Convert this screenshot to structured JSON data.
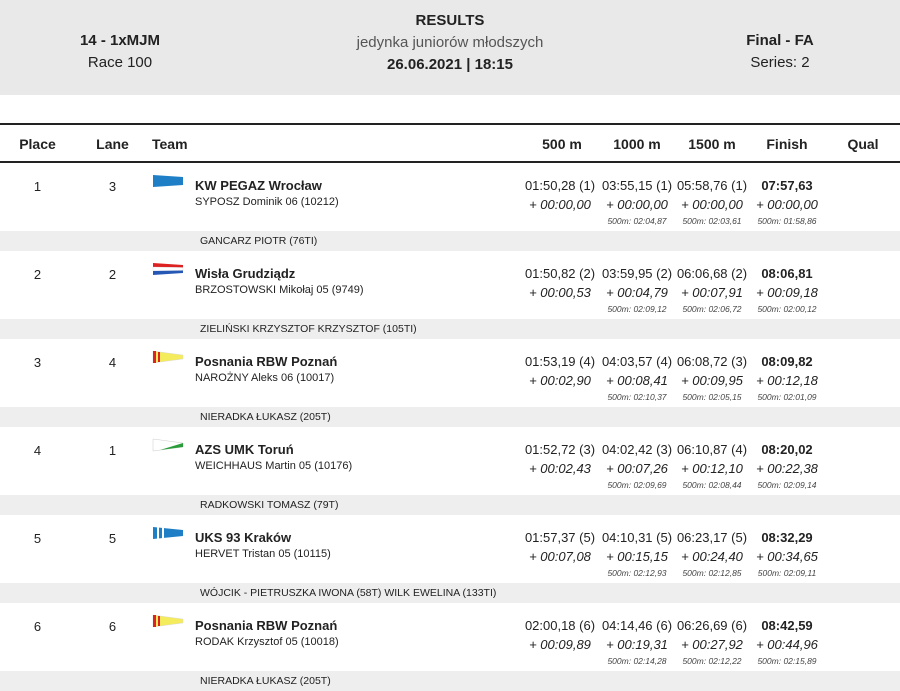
{
  "header": {
    "race_class": "14 - 1xMJM",
    "race_number": "Race 100",
    "title": "RESULTS",
    "event_name": "jedynka juniorów młodszych",
    "datetime": "26.06.2021 | 18:15",
    "phase": "Final - FA",
    "series": "Series: 2"
  },
  "columns": {
    "place": "Place",
    "lane": "Lane",
    "team": "Team",
    "s500": "500 m",
    "s1000": "1000 m",
    "s1500": "1500 m",
    "finish": "Finish",
    "qual": "Qual"
  },
  "results": [
    {
      "place": "1",
      "lane": "3",
      "team": "KW PEGAZ Wrocław",
      "rower": "SYPOSZ  Dominik 06 (10212)",
      "flag": "blue-pennant",
      "s500": "01:50,28 (1)",
      "s500_diff": "+ 00:00,00",
      "s1000": "03:55,15 (1)",
      "s1000_diff": "+ 00:00,00",
      "s1000_sub": "500m: 02:04,87",
      "s1500": "05:58,76 (1)",
      "s1500_diff": "+ 00:00,00",
      "s1500_sub": "500m: 02:03,61",
      "finish": "07:57,63",
      "finish_diff": "+ 00:00,00",
      "finish_sub": "500m: 01:58,86",
      "coach": "GANCARZ PIOTR (76TI)"
    },
    {
      "place": "2",
      "lane": "2",
      "team": "Wisła Grudziądz",
      "rower": "BRZOSTOWSKI  Mikołaj 05 (9749)",
      "flag": "red-white-blue-stripes",
      "s500": "01:50,82 (2)",
      "s500_diff": "+ 00:00,53",
      "s1000": "03:59,95 (2)",
      "s1000_diff": "+ 00:04,79",
      "s1000_sub": "500m: 02:09,12",
      "s1500": "06:06,68 (2)",
      "s1500_diff": "+ 00:07,91",
      "s1500_sub": "500m: 02:06,72",
      "finish": "08:06,81",
      "finish_diff": "+ 00:09,18",
      "finish_sub": "500m: 02:00,12",
      "coach": "ZIELIŃSKI KRZYSZTOF KRZYSZTOF (105TI)"
    },
    {
      "place": "3",
      "lane": "4",
      "team": "Posnania RBW Poznań",
      "rower": "NAROŻNY  Aleks 06 (10017)",
      "flag": "yellow-red-pennant",
      "s500": "01:53,19 (4)",
      "s500_diff": "+ 00:02,90",
      "s1000": "04:03,57 (4)",
      "s1000_diff": "+ 00:08,41",
      "s1000_sub": "500m: 02:10,37",
      "s1500": "06:08,72 (3)",
      "s1500_diff": "+ 00:09,95",
      "s1500_sub": "500m: 02:05,15",
      "finish": "08:09,82",
      "finish_diff": "+ 00:12,18",
      "finish_sub": "500m: 02:01,09",
      "coach": "NIERADKA ŁUKASZ (205T)"
    },
    {
      "place": "4",
      "lane": "1",
      "team": "AZS UMK Toruń",
      "rower": "WEICHHAUS  Martin 05 (10176)",
      "flag": "white-green-pennant",
      "s500": "01:52,72 (3)",
      "s500_diff": "+ 00:02,43",
      "s1000": "04:02,42 (3)",
      "s1000_diff": "+ 00:07,26",
      "s1000_sub": "500m: 02:09,69",
      "s1500": "06:10,87 (4)",
      "s1500_diff": "+ 00:12,10",
      "s1500_sub": "500m: 02:08,44",
      "finish": "08:20,02",
      "finish_diff": "+ 00:22,38",
      "finish_sub": "500m: 02:09,14",
      "coach": "RADKOWSKI TOMASZ (79T)"
    },
    {
      "place": "5",
      "lane": "5",
      "team": "UKS 93 Kraków",
      "rower": "HERVET  Tristan 05 (10115)",
      "flag": "blue-white-stripes-pennant",
      "s500": "01:57,37 (5)",
      "s500_diff": "+ 00:07,08",
      "s1000": "04:10,31 (5)",
      "s1000_diff": "+ 00:15,15",
      "s1000_sub": "500m: 02:12,93",
      "s1500": "06:23,17 (5)",
      "s1500_diff": "+ 00:24,40",
      "s1500_sub": "500m: 02:12,85",
      "finish": "08:32,29",
      "finish_diff": "+ 00:34,65",
      "finish_sub": "500m: 02:09,11",
      "coach": "WÓJCIK - PIETRUSZKA IWONA (58T) WILK EWELINA (133TI)"
    },
    {
      "place": "6",
      "lane": "6",
      "team": "Posnania RBW Poznań",
      "rower": "RODAK  Krzysztof 05 (10018)",
      "flag": "yellow-red-pennant",
      "s500": "02:00,18 (6)",
      "s500_diff": "+ 00:09,89",
      "s1000": "04:14,46 (6)",
      "s1000_diff": "+ 00:19,31",
      "s1000_sub": "500m: 02:14,28",
      "s1500": "06:26,69 (6)",
      "s1500_diff": "+ 00:27,92",
      "s1500_sub": "500m: 02:12,22",
      "finish": "08:42,59",
      "finish_diff": "+ 00:44,96",
      "finish_sub": "500m: 02:15,89",
      "coach": "NIERADKA ŁUKASZ (205T)"
    }
  ]
}
